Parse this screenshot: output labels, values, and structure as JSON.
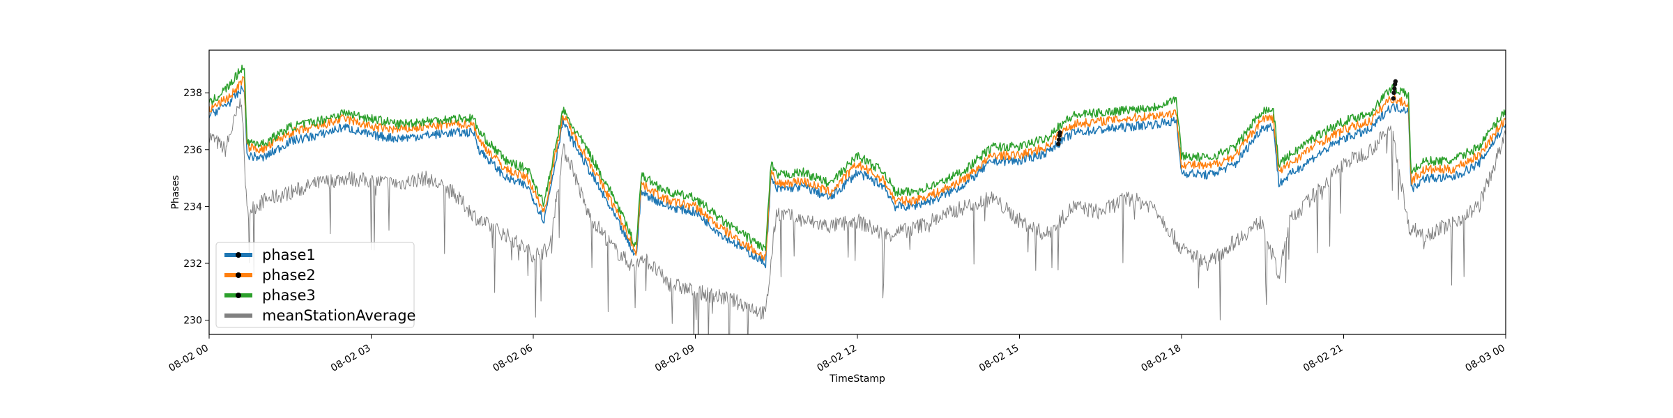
{
  "chart_data": {
    "type": "line",
    "title": "",
    "xlabel": "TimeStamp",
    "ylabel": "Phases",
    "x_range_hours": [
      0,
      24
    ],
    "ylim": [
      229.5,
      239.5
    ],
    "x_ticks": [
      {
        "hour": 0,
        "label": "08-02 00"
      },
      {
        "hour": 3,
        "label": "08-02 03"
      },
      {
        "hour": 6,
        "label": "08-02 06"
      },
      {
        "hour": 9,
        "label": "08-02 09"
      },
      {
        "hour": 12,
        "label": "08-02 12"
      },
      {
        "hour": 15,
        "label": "08-02 15"
      },
      {
        "hour": 18,
        "label": "08-02 18"
      },
      {
        "hour": 21,
        "label": "08-02 21"
      },
      {
        "hour": 24,
        "label": "08-03 00"
      }
    ],
    "y_ticks": [
      230,
      232,
      234,
      236,
      238
    ],
    "grid": false,
    "legend_position": "lower-left",
    "series": [
      {
        "name": "phase1",
        "color": "#1f77b4",
        "marker": "circle",
        "x": [
          0,
          0.4,
          0.65,
          0.7,
          1.0,
          1.5,
          2.0,
          2.5,
          3.0,
          3.5,
          4.0,
          4.5,
          4.9,
          5.0,
          5.5,
          5.9,
          6.2,
          6.55,
          6.7,
          7.0,
          7.5,
          7.9,
          8.0,
          8.5,
          9.0,
          9.5,
          10.3,
          10.4,
          10.5,
          11.0,
          11.5,
          12.0,
          12.5,
          12.7,
          13.0,
          13.5,
          14.0,
          14.5,
          15.0,
          15.5,
          15.7,
          16.0,
          16.5,
          17.0,
          17.5,
          17.9,
          18.0,
          18.5,
          19.0,
          19.5,
          19.7,
          19.8,
          20.0,
          20.5,
          21.0,
          21.5,
          21.8,
          21.9,
          22.2,
          22.25,
          22.5,
          23.0,
          23.5,
          24.0
        ],
        "y": [
          237.2,
          237.7,
          238.2,
          235.8,
          235.7,
          236.3,
          236.5,
          236.8,
          236.5,
          236.4,
          236.5,
          236.6,
          236.6,
          236.0,
          235.0,
          234.7,
          233.5,
          237.0,
          236.4,
          235.4,
          233.7,
          232.2,
          234.5,
          234.0,
          233.8,
          233.0,
          232.0,
          235.0,
          234.6,
          234.7,
          234.3,
          235.2,
          234.7,
          234.0,
          234.0,
          234.3,
          234.8,
          235.6,
          235.6,
          235.9,
          236.2,
          236.6,
          236.7,
          236.8,
          236.9,
          237.0,
          235.2,
          235.1,
          235.5,
          236.8,
          236.8,
          234.8,
          235.1,
          235.8,
          236.4,
          236.7,
          237.4,
          237.5,
          237.4,
          234.6,
          235.0,
          235.0,
          235.5,
          236.9
        ]
      },
      {
        "name": "phase2",
        "color": "#ff7f0e",
        "marker": "circle",
        "x": [
          0,
          0.4,
          0.65,
          0.7,
          1.0,
          1.5,
          2.0,
          2.5,
          3.0,
          3.5,
          4.0,
          4.5,
          4.9,
          5.0,
          5.5,
          5.9,
          6.2,
          6.55,
          6.7,
          7.0,
          7.5,
          7.9,
          8.0,
          8.5,
          9.0,
          9.5,
          10.3,
          10.4,
          10.5,
          11.0,
          11.5,
          12.0,
          12.5,
          12.7,
          13.0,
          13.5,
          14.0,
          14.5,
          15.0,
          15.5,
          15.7,
          16.0,
          16.5,
          17.0,
          17.5,
          17.9,
          18.0,
          18.5,
          19.0,
          19.5,
          19.7,
          19.8,
          20.0,
          20.5,
          21.0,
          21.5,
          21.8,
          21.9,
          22.2,
          22.25,
          22.5,
          23.0,
          23.5,
          24.0
        ],
        "y": [
          237.4,
          237.9,
          238.5,
          236.1,
          236.0,
          236.6,
          236.8,
          237.1,
          236.8,
          236.7,
          236.8,
          236.9,
          236.9,
          236.3,
          235.3,
          235.0,
          233.8,
          237.2,
          236.7,
          235.7,
          234.0,
          232.4,
          234.8,
          234.2,
          234.0,
          233.2,
          232.2,
          235.2,
          234.8,
          234.9,
          234.5,
          235.5,
          234.9,
          234.2,
          234.2,
          234.5,
          235.0,
          235.8,
          235.8,
          236.1,
          236.5,
          236.9,
          237.0,
          237.1,
          237.2,
          237.3,
          235.5,
          235.4,
          235.8,
          237.1,
          237.1,
          235.2,
          235.5,
          236.2,
          236.7,
          237.0,
          237.7,
          237.8,
          237.6,
          234.9,
          235.3,
          235.3,
          235.8,
          237.1
        ]
      },
      {
        "name": "phase3",
        "color": "#2ca02c",
        "marker": "circle",
        "x": [
          0,
          0.4,
          0.65,
          0.7,
          1.0,
          1.5,
          2.0,
          2.5,
          3.0,
          3.5,
          4.0,
          4.5,
          4.9,
          5.0,
          5.5,
          5.9,
          6.2,
          6.55,
          6.7,
          7.0,
          7.5,
          7.9,
          8.0,
          8.5,
          9.0,
          9.5,
          10.3,
          10.4,
          10.5,
          11.0,
          11.5,
          12.0,
          12.5,
          12.7,
          13.0,
          13.5,
          14.0,
          14.5,
          15.0,
          15.5,
          15.7,
          16.0,
          16.5,
          17.0,
          17.5,
          17.9,
          18.0,
          18.5,
          19.0,
          19.5,
          19.7,
          19.8,
          20.0,
          20.5,
          21.0,
          21.5,
          21.8,
          21.9,
          22.2,
          22.25,
          22.5,
          23.0,
          23.5,
          24.0
        ],
        "y": [
          237.6,
          238.3,
          239.0,
          236.3,
          236.2,
          236.8,
          237.0,
          237.3,
          237.1,
          236.9,
          237.0,
          237.1,
          237.1,
          236.6,
          235.6,
          235.3,
          234.1,
          237.4,
          236.9,
          236.0,
          234.3,
          232.6,
          235.1,
          234.5,
          234.3,
          233.5,
          232.5,
          235.5,
          235.1,
          235.2,
          234.8,
          235.8,
          235.2,
          234.5,
          234.5,
          234.8,
          235.3,
          236.1,
          236.1,
          236.4,
          236.8,
          237.2,
          237.3,
          237.4,
          237.5,
          237.8,
          235.8,
          235.7,
          236.1,
          237.4,
          237.4,
          235.5,
          235.8,
          236.5,
          237.0,
          237.3,
          238.0,
          238.2,
          237.9,
          235.2,
          235.6,
          235.6,
          236.1,
          237.4
        ]
      },
      {
        "name": "meanStationAverage",
        "color": "#808080",
        "marker": "none",
        "x": [
          0,
          0.3,
          0.6,
          0.7,
          1.0,
          1.5,
          2.0,
          2.5,
          3.0,
          3.5,
          4.0,
          4.5,
          5.0,
          5.5,
          6.0,
          6.3,
          6.55,
          6.7,
          7.0,
          7.5,
          7.9,
          8.0,
          8.5,
          9.0,
          9.5,
          10.0,
          10.3,
          10.5,
          11.0,
          11.5,
          12.0,
          12.5,
          13.0,
          13.5,
          14.0,
          14.5,
          15.0,
          15.5,
          16.0,
          16.5,
          17.0,
          17.5,
          18.0,
          18.5,
          19.0,
          19.5,
          19.8,
          20.0,
          20.5,
          21.0,
          21.5,
          21.9,
          22.2,
          22.5,
          23.0,
          23.5,
          24.0
        ],
        "y": [
          236.5,
          236.0,
          237.8,
          233.8,
          234.2,
          234.5,
          234.8,
          235.0,
          234.9,
          234.8,
          235.0,
          234.5,
          233.5,
          233.0,
          232.3,
          232.5,
          236.0,
          235.5,
          233.8,
          232.5,
          231.8,
          232.3,
          231.3,
          231.0,
          230.8,
          230.5,
          230.2,
          233.8,
          233.5,
          233.3,
          233.5,
          233.0,
          233.2,
          233.6,
          234.0,
          234.3,
          233.5,
          233.0,
          234.0,
          233.8,
          234.3,
          234.0,
          232.5,
          232.0,
          232.8,
          233.5,
          231.5,
          233.5,
          234.5,
          235.5,
          236.0,
          236.8,
          233.3,
          233.0,
          233.4,
          234.0,
          236.5
        ]
      }
    ]
  }
}
